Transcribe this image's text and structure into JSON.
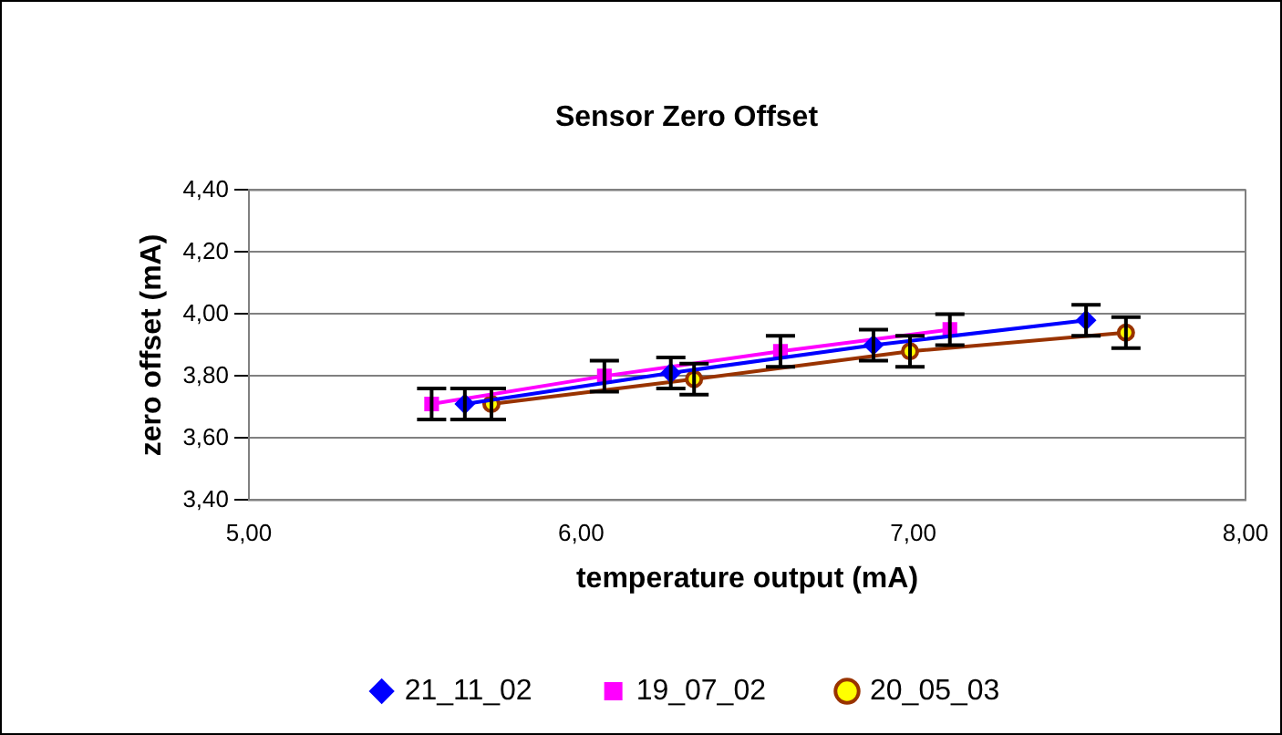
{
  "chart_data": {
    "type": "line",
    "title": "Sensor Zero Offset",
    "xlabel": "temperature output (mA)",
    "ylabel": "zero offset (mA)",
    "xlim": [
      5,
      8
    ],
    "xticks": [
      {
        "value": 5,
        "label": "5,00"
      },
      {
        "value": 6,
        "label": "6,00"
      },
      {
        "value": 7,
        "label": "7,00"
      },
      {
        "value": 8,
        "label": "8,00"
      }
    ],
    "ylim": [
      3.4,
      4.4
    ],
    "yticks": [
      {
        "value": 3.4,
        "label": "3,40"
      },
      {
        "value": 3.6,
        "label": "3,60"
      },
      {
        "value": 3.8,
        "label": "3,80"
      },
      {
        "value": 4.0,
        "label": "4,00"
      },
      {
        "value": 4.2,
        "label": "4,20"
      },
      {
        "value": 4.4,
        "label": "4,40"
      }
    ],
    "grid": "y",
    "legend": "bottom",
    "series": [
      {
        "name": "21_11_02",
        "color": "#0000ff",
        "marker": "diamond",
        "x": [
          5.65,
          6.27,
          6.88,
          7.52
        ],
        "values": [
          3.71,
          3.81,
          3.9,
          3.98
        ],
        "errors": [
          0.05,
          0.05,
          0.05,
          0.05
        ]
      },
      {
        "name": "19_07_02",
        "color": "#ff00ff",
        "marker": "square",
        "x": [
          5.55,
          6.07,
          6.6,
          7.11
        ],
        "values": [
          3.71,
          3.8,
          3.88,
          3.95
        ],
        "errors": [
          0.05,
          0.05,
          0.05,
          0.05
        ]
      },
      {
        "name": "20_05_03",
        "color": "#993300",
        "marker": "circle",
        "x": [
          5.73,
          6.34,
          6.99,
          7.64
        ],
        "values": [
          3.71,
          3.79,
          3.88,
          3.94
        ],
        "errors": [
          0.05,
          0.05,
          0.05,
          0.05
        ]
      }
    ]
  }
}
